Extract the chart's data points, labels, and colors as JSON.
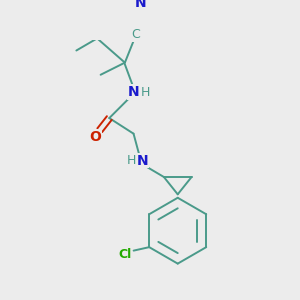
{
  "background_color": "#ececec",
  "bond_color": "#4a9a8a",
  "atom_colors": {
    "N": "#1a1acc",
    "O": "#cc2200",
    "Cl": "#22aa00",
    "C_label": "#4a9a8a",
    "H": "#4a9a8a"
  },
  "figsize": [
    3.0,
    3.0
  ],
  "dpi": 100
}
